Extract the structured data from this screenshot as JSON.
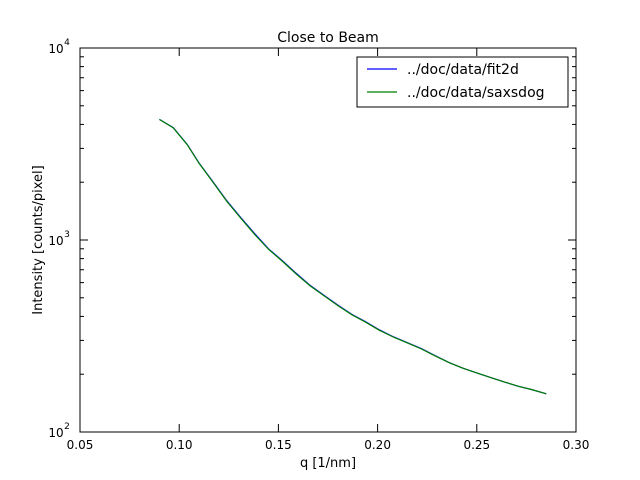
{
  "chart_data": {
    "type": "line",
    "title": "Close to Beam",
    "xlabel": "q [1/nm]",
    "ylabel": "Intensity [counts/pixel]",
    "xlim": [
      0.05,
      0.3
    ],
    "ylim": [
      100,
      10000
    ],
    "yscale": "log",
    "grid": false,
    "legend_position": "top-right",
    "x_ticks": [
      {
        "value": 0.05,
        "label": "0.05"
      },
      {
        "value": 0.1,
        "label": "0.10"
      },
      {
        "value": 0.15,
        "label": "0.15"
      },
      {
        "value": 0.2,
        "label": "0.20"
      },
      {
        "value": 0.25,
        "label": "0.25"
      },
      {
        "value": 0.3,
        "label": "0.30"
      }
    ],
    "y_ticks": [
      {
        "value": 100,
        "base": "10",
        "exp": "2"
      },
      {
        "value": 1000,
        "base": "10",
        "exp": "3"
      },
      {
        "value": 10000,
        "base": "10",
        "exp": "4"
      }
    ],
    "x": [
      0.09,
      0.097,
      0.104,
      0.11,
      0.117,
      0.124,
      0.131,
      0.138,
      0.145,
      0.152,
      0.159,
      0.166,
      0.173,
      0.18,
      0.187,
      0.194,
      0.201,
      0.208,
      0.215,
      0.222,
      0.229,
      0.236,
      0.243,
      0.25,
      0.257,
      0.264,
      0.271,
      0.278,
      0.285
    ],
    "series": [
      {
        "name": "../doc/data/fit2d",
        "color": "#0000ff",
        "values": [
          4250,
          3850,
          3150,
          2520,
          2010,
          1600,
          1310,
          1080,
          900,
          780,
          670,
          580,
          515,
          458,
          410,
          375,
          340,
          313,
          292,
          272,
          250,
          230,
          215,
          203,
          192,
          182,
          173,
          166,
          158
        ]
      },
      {
        "name": "../doc/data/saxsdog",
        "color": "#007f00",
        "values": [
          4250,
          3840,
          3140,
          2510,
          2000,
          1590,
          1300,
          1070,
          895,
          775,
          665,
          577,
          512,
          455,
          408,
          373,
          338,
          312,
          291,
          271,
          249,
          230,
          215,
          203,
          192,
          182,
          173,
          166,
          158
        ]
      }
    ]
  }
}
